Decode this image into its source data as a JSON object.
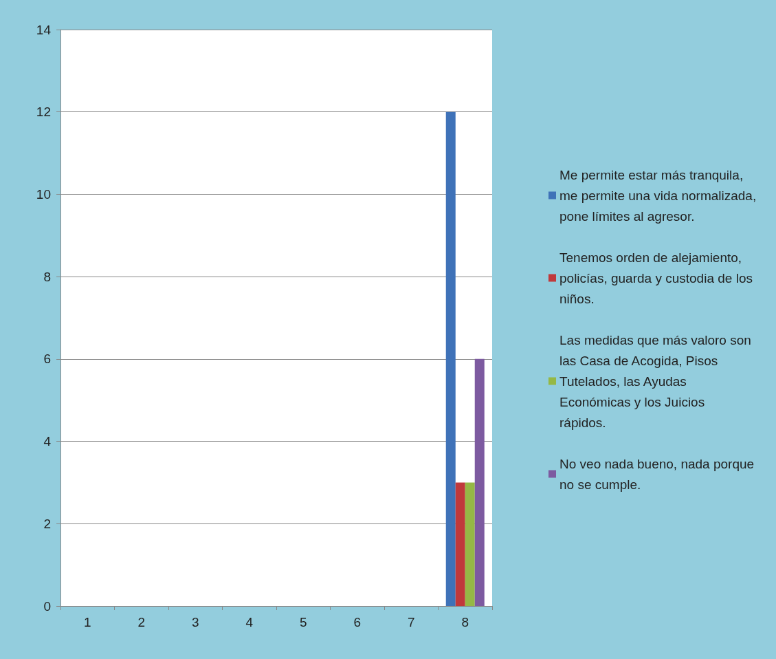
{
  "chart_data": {
    "type": "bar",
    "categories": [
      "1",
      "2",
      "3",
      "4",
      "5",
      "6",
      "7",
      "8"
    ],
    "series": [
      {
        "name": "Me permite estar más tranquila, me permite una vida normalizada, pone límites al agresor.",
        "color": "#3f72b8",
        "values": [
          null,
          null,
          null,
          null,
          null,
          null,
          null,
          12
        ]
      },
      {
        "name": "Tenemos orden de alejamiento, policías, guarda y custodia de los niños.",
        "color": "#c0393b",
        "values": [
          null,
          null,
          null,
          null,
          null,
          null,
          null,
          3
        ]
      },
      {
        "name": "Las medidas que más valoro son las Casa de Acogida, Pisos Tutelados, las Ayudas Económicas y los Juicios rápidos.",
        "color": "#95b845",
        "values": [
          null,
          null,
          null,
          null,
          null,
          null,
          null,
          3
        ]
      },
      {
        "name": "No veo nada bueno, nada porque no se cumple.",
        "color": "#7d5aa0",
        "values": [
          null,
          null,
          null,
          null,
          null,
          null,
          null,
          6
        ]
      }
    ],
    "ylim": [
      0,
      14
    ],
    "yticks": [
      0,
      2,
      4,
      6,
      8,
      10,
      12,
      14
    ],
    "grid": "y",
    "legend": "right"
  }
}
